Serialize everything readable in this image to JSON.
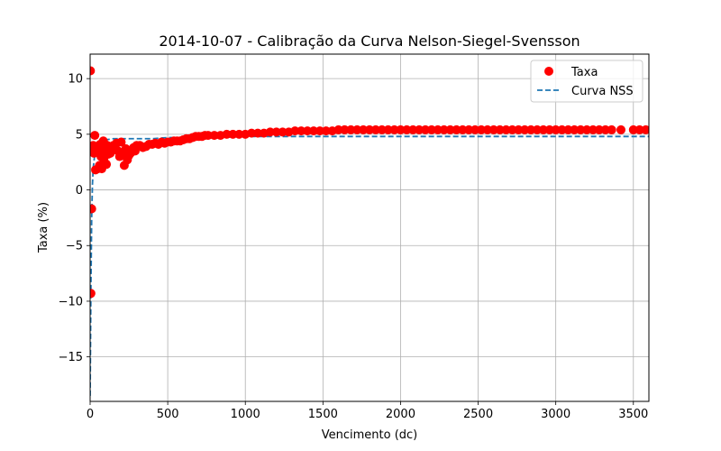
{
  "chart_data": {
    "type": "scatter",
    "title": "2014-10-07 - Calibração da Curva Nelson-Siegel-Svensson",
    "xlabel": "Vencimento (dc)",
    "ylabel": "Taxa (%)",
    "xlim": [
      0,
      3600
    ],
    "ylim": [
      -19,
      12.2
    ],
    "xticks": [
      0,
      500,
      1000,
      1500,
      2000,
      2500,
      3000,
      3500
    ],
    "yticks": [
      -15,
      -10,
      -5,
      0,
      5,
      10
    ],
    "ytick_labels": [
      "−15",
      "−10",
      "−5",
      "0",
      "5",
      "10"
    ],
    "grid": true,
    "legend_position": "top-right",
    "series": [
      {
        "name": "Taxa",
        "kind": "scatter",
        "color": "#ff0000",
        "points": [
          [
            2,
            10.7
          ],
          [
            5,
            -9.3
          ],
          [
            10,
            -1.7
          ],
          [
            15,
            3.6
          ],
          [
            20,
            4.0
          ],
          [
            25,
            3.3
          ],
          [
            30,
            4.9
          ],
          [
            35,
            1.8
          ],
          [
            40,
            3.9
          ],
          [
            45,
            3.5
          ],
          [
            50,
            1.9
          ],
          [
            55,
            3.7
          ],
          [
            60,
            2.2
          ],
          [
            65,
            4.1
          ],
          [
            70,
            3.0
          ],
          [
            75,
            1.9
          ],
          [
            80,
            3.6
          ],
          [
            85,
            4.4
          ],
          [
            90,
            2.6
          ],
          [
            95,
            4.1
          ],
          [
            100,
            3.5
          ],
          [
            105,
            2.3
          ],
          [
            110,
            4.0
          ],
          [
            115,
            3.2
          ],
          [
            120,
            3.8
          ],
          [
            130,
            3.3
          ],
          [
            140,
            3.6
          ],
          [
            150,
            4.0
          ],
          [
            160,
            3.8
          ],
          [
            170,
            4.2
          ],
          [
            180,
            3.5
          ],
          [
            190,
            3.0
          ],
          [
            200,
            4.3
          ],
          [
            210,
            3.2
          ],
          [
            220,
            2.2
          ],
          [
            230,
            3.7
          ],
          [
            240,
            2.7
          ],
          [
            250,
            3.1
          ],
          [
            260,
            3.3
          ],
          [
            270,
            3.6
          ],
          [
            280,
            3.8
          ],
          [
            290,
            3.5
          ],
          [
            300,
            4.0
          ],
          [
            320,
            4.0
          ],
          [
            340,
            3.8
          ],
          [
            360,
            3.9
          ],
          [
            380,
            4.1
          ],
          [
            400,
            4.1
          ],
          [
            420,
            4.2
          ],
          [
            440,
            4.1
          ],
          [
            460,
            4.3
          ],
          [
            480,
            4.2
          ],
          [
            500,
            4.3
          ],
          [
            520,
            4.3
          ],
          [
            540,
            4.4
          ],
          [
            560,
            4.4
          ],
          [
            580,
            4.4
          ],
          [
            600,
            4.5
          ],
          [
            620,
            4.6
          ],
          [
            640,
            4.6
          ],
          [
            660,
            4.7
          ],
          [
            680,
            4.8
          ],
          [
            700,
            4.8
          ],
          [
            720,
            4.8
          ],
          [
            740,
            4.9
          ],
          [
            760,
            4.9
          ],
          [
            800,
            4.9
          ],
          [
            840,
            4.9
          ],
          [
            880,
            5.0
          ],
          [
            920,
            5.0
          ],
          [
            960,
            5.0
          ],
          [
            1000,
            5.0
          ],
          [
            1040,
            5.1
          ],
          [
            1080,
            5.1
          ],
          [
            1120,
            5.1
          ],
          [
            1160,
            5.2
          ],
          [
            1200,
            5.2
          ],
          [
            1240,
            5.2
          ],
          [
            1280,
            5.2
          ],
          [
            1320,
            5.3
          ],
          [
            1360,
            5.3
          ],
          [
            1400,
            5.3
          ],
          [
            1440,
            5.3
          ],
          [
            1480,
            5.3
          ],
          [
            1520,
            5.3
          ],
          [
            1560,
            5.3
          ],
          [
            1600,
            5.4
          ],
          [
            1640,
            5.4
          ],
          [
            1680,
            5.4
          ],
          [
            1720,
            5.4
          ],
          [
            1760,
            5.4
          ],
          [
            1800,
            5.4
          ],
          [
            1840,
            5.4
          ],
          [
            1880,
            5.4
          ],
          [
            1920,
            5.4
          ],
          [
            1960,
            5.4
          ],
          [
            2000,
            5.4
          ],
          [
            2040,
            5.4
          ],
          [
            2080,
            5.4
          ],
          [
            2120,
            5.4
          ],
          [
            2160,
            5.4
          ],
          [
            2200,
            5.4
          ],
          [
            2240,
            5.4
          ],
          [
            2280,
            5.4
          ],
          [
            2320,
            5.4
          ],
          [
            2360,
            5.4
          ],
          [
            2400,
            5.4
          ],
          [
            2440,
            5.4
          ],
          [
            2480,
            5.4
          ],
          [
            2520,
            5.4
          ],
          [
            2560,
            5.4
          ],
          [
            2600,
            5.4
          ],
          [
            2640,
            5.4
          ],
          [
            2680,
            5.4
          ],
          [
            2720,
            5.4
          ],
          [
            2760,
            5.4
          ],
          [
            2800,
            5.4
          ],
          [
            2840,
            5.4
          ],
          [
            2880,
            5.4
          ],
          [
            2920,
            5.4
          ],
          [
            2960,
            5.4
          ],
          [
            3000,
            5.4
          ],
          [
            3040,
            5.4
          ],
          [
            3080,
            5.4
          ],
          [
            3120,
            5.4
          ],
          [
            3160,
            5.4
          ],
          [
            3200,
            5.4
          ],
          [
            3240,
            5.4
          ],
          [
            3280,
            5.4
          ],
          [
            3320,
            5.4
          ],
          [
            3360,
            5.4
          ],
          [
            3420,
            5.4
          ],
          [
            3500,
            5.4
          ],
          [
            3540,
            5.4
          ],
          [
            3580,
            5.4
          ]
        ]
      },
      {
        "name": "Curva NSS",
        "kind": "line",
        "style": "dashed",
        "color": "#1f77b4",
        "points": [
          [
            0,
            -18.5
          ],
          [
            5,
            -9.0
          ],
          [
            10,
            -2.5
          ],
          [
            15,
            0.5
          ],
          [
            20,
            2.0
          ],
          [
            30,
            3.2
          ],
          [
            40,
            3.8
          ],
          [
            60,
            4.2
          ],
          [
            80,
            4.4
          ],
          [
            100,
            4.5
          ],
          [
            150,
            4.6
          ],
          [
            200,
            4.6
          ],
          [
            300,
            4.6
          ],
          [
            400,
            4.6
          ],
          [
            500,
            4.7
          ],
          [
            600,
            4.7
          ],
          [
            800,
            4.7
          ],
          [
            1000,
            4.8
          ],
          [
            1200,
            4.8
          ],
          [
            1500,
            4.8
          ],
          [
            2000,
            4.8
          ],
          [
            2500,
            4.8
          ],
          [
            3000,
            4.8
          ],
          [
            3600,
            4.8
          ]
        ]
      }
    ]
  }
}
